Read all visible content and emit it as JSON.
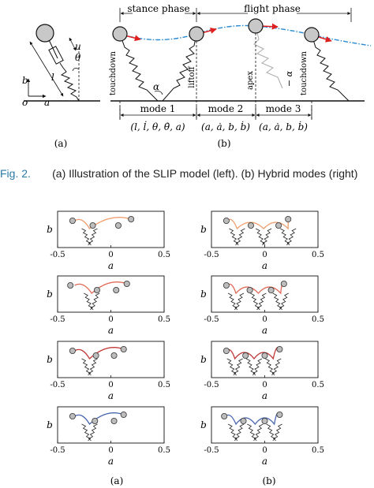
{
  "top_figure": {
    "panel_a": {
      "label": "(a)",
      "labels": {
        "u": "u",
        "theta": "θ",
        "l": "l",
        "b": "b",
        "o": "o",
        "a": "a"
      }
    },
    "panel_b": {
      "label": "(b)",
      "phases": [
        "stance phase",
        "flight phase"
      ],
      "events": [
        "touchdown",
        "liftoff",
        "apex",
        "touchdown"
      ],
      "alpha": "α",
      "neg_alpha": "− α",
      "modes": [
        "mode 1",
        "mode 2",
        "mode 3"
      ],
      "mode_states": [
        "(l, l̇, θ, θ̇, a)",
        "(a, ȧ, b, ḃ)",
        "(a, ȧ, b, ḃ)"
      ]
    }
  },
  "caption": {
    "fig_label": "Fig. 2.",
    "text": "(a) Illustration of the SLIP model (left). (b) Hybrid modes (right)"
  },
  "chart_data": [
    {
      "type": "line",
      "column": "(a)",
      "row": 1,
      "color": "#f0a070",
      "xlabel": "a",
      "ylabel": "b",
      "xlim": [
        -0.5,
        0.5
      ],
      "xticks": [
        "-0.5",
        "0",
        "0.5"
      ],
      "stance_x": [
        -0.2
      ],
      "apex_x": -0.34,
      "apex_y": 1.0,
      "markers_x": [
        -0.36,
        -0.17,
        0.07,
        0.19
      ]
    },
    {
      "type": "line",
      "column": "(b)",
      "row": 1,
      "color": "#f0a070",
      "xlabel": "a",
      "ylabel": "b",
      "xlim": [
        -0.5,
        0.5
      ],
      "xticks": [
        "-0.5",
        "0",
        "0.5"
      ],
      "stance_x": [
        -0.26,
        -0.01,
        0.22
      ],
      "apex_x": -0.35,
      "apex_y": 1.0,
      "markers_x": [
        -0.36,
        -0.13,
        0.13,
        0.22
      ]
    },
    {
      "type": "line",
      "column": "(a)",
      "row": 2,
      "color": "#e06a55",
      "xlabel": "a",
      "ylabel": "b",
      "xlim": [
        -0.5,
        0.5
      ],
      "xticks": [
        "-0.5",
        "0",
        "0.5"
      ],
      "stance_x": [
        -0.18
      ],
      "apex_x": -0.34,
      "apex_y": 1.0,
      "markers_x": [
        -0.38,
        -0.13,
        0.05,
        0.15
      ]
    },
    {
      "type": "line",
      "column": "(b)",
      "row": 2,
      "color": "#e06a55",
      "xlabel": "a",
      "ylabel": "b",
      "xlim": [
        -0.5,
        0.5
      ],
      "xticks": [
        "-0.5",
        "0",
        "0.5"
      ],
      "stance_x": [
        -0.27,
        -0.06,
        0.15
      ],
      "apex_x": -0.35,
      "apex_y": 1.0,
      "markers_x": [
        -0.36,
        -0.14,
        0.06,
        0.18
      ]
    },
    {
      "type": "line",
      "column": "(a)",
      "row": 3,
      "color": "#c03a3a",
      "xlabel": "a",
      "ylabel": "b",
      "xlim": [
        -0.5,
        0.5
      ],
      "xticks": [
        "-0.5",
        "0",
        "0.5"
      ],
      "stance_x": [
        -0.2
      ],
      "apex_x": -0.34,
      "apex_y": 1.0,
      "markers_x": [
        -0.36,
        -0.14,
        0.03,
        0.12
      ]
    },
    {
      "type": "line",
      "column": "(b)",
      "row": 3,
      "color": "#c03a3a",
      "xlabel": "a",
      "ylabel": "b",
      "xlim": [
        -0.5,
        0.5
      ],
      "xticks": [
        "-0.5",
        "0",
        "0.5"
      ],
      "stance_x": [
        -0.28,
        -0.1,
        0.08
      ],
      "apex_x": -0.36,
      "apex_y": 1.0,
      "markers_x": [
        -0.36,
        -0.18,
        0.0,
        0.14
      ]
    },
    {
      "type": "line",
      "column": "(a)",
      "row": 4,
      "color": "#4a68b0",
      "xlabel": "a",
      "ylabel": "b",
      "xlim": [
        -0.5,
        0.5
      ],
      "xticks": [
        "-0.5",
        "0",
        "0.5"
      ],
      "stance_x": [
        -0.2
      ],
      "apex_x": -0.34,
      "apex_y": 1.0,
      "markers_x": [
        -0.36,
        -0.15,
        0.03,
        0.12
      ]
    },
    {
      "type": "line",
      "column": "(b)",
      "row": 4,
      "color": "#4a68b0",
      "xlabel": "a",
      "ylabel": "b",
      "xlim": [
        -0.5,
        0.5
      ],
      "xticks": [
        "-0.5",
        "0",
        "0.5"
      ],
      "stance_x": [
        -0.27,
        -0.09,
        0.09
      ],
      "apex_x": -0.37,
      "apex_y": 1.0,
      "markers_x": [
        -0.38,
        -0.2,
        0.0,
        0.14
      ]
    }
  ],
  "bottom_labels": {
    "left": "(a)",
    "right": "(b)"
  }
}
